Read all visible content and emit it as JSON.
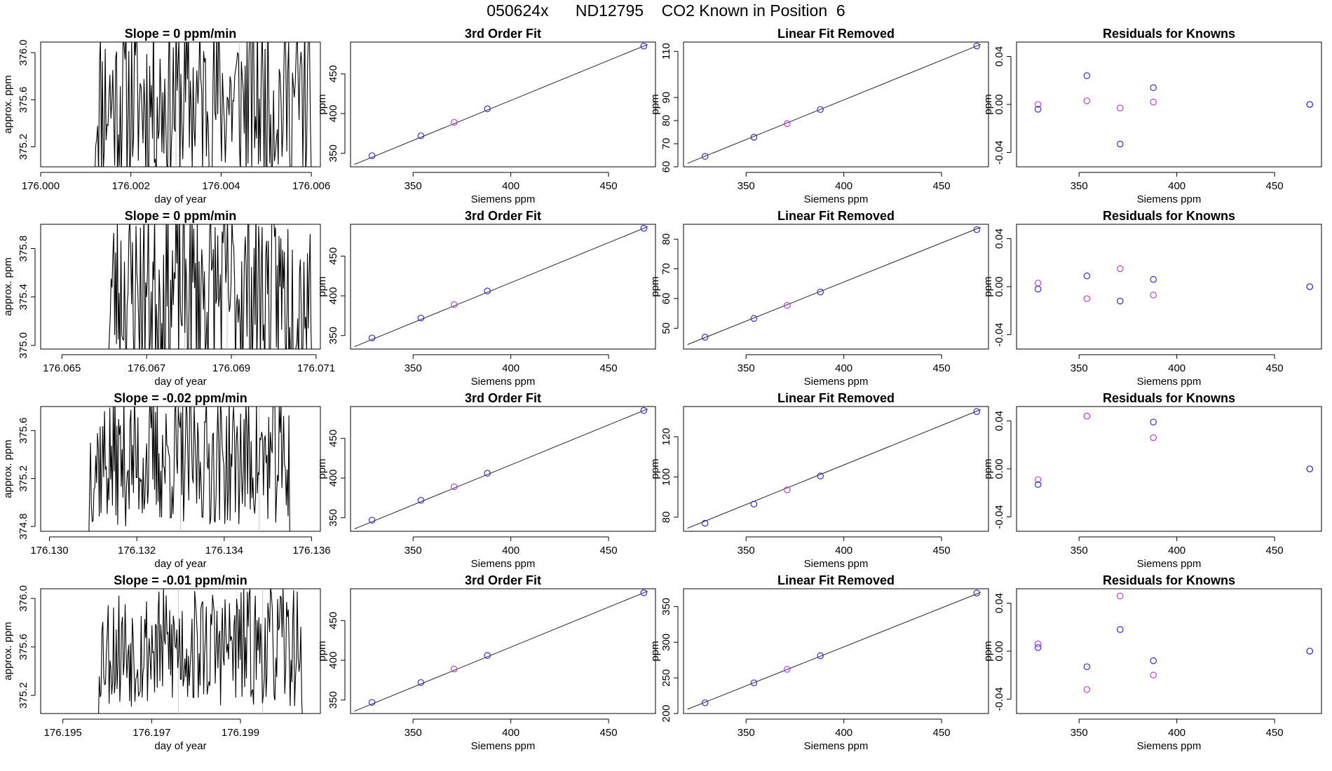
{
  "title": "050624x      ND12795    CO2 Known in Position  6",
  "colors": {
    "trace": "#000000",
    "frame": "#000000",
    "fit_line": "#222222",
    "point_blue": "#3030d8",
    "point_magenta": "#c040e0",
    "vline": "#c8c8c8"
  },
  "chart_data": [
    {
      "type": "line",
      "row": 1,
      "col": 1,
      "title": "Slope =  0  ppm/min",
      "xlabel": "day of year",
      "ylabel": "approx. ppm",
      "xlim": [
        176.0,
        176.0062
      ],
      "ylim": [
        375.03,
        376.09
      ],
      "xticks": [
        176.0,
        176.002,
        176.004,
        176.006
      ],
      "xtick_labels": [
        "176.000",
        "176.002",
        "176.004",
        "176.006"
      ],
      "yticks": [
        375.2,
        375.6,
        376.0
      ],
      "ytick_labels": [
        "375.2",
        "375.6",
        "376.0"
      ],
      "vlines": [
        176.003,
        176.0044,
        176.005
      ],
      "trace_x_range": [
        176.0012,
        176.006
      ],
      "trace_seed": 11,
      "trace_n": 230,
      "trace_center": 375.6,
      "trace_amp": 0.75
    },
    {
      "type": "scatter",
      "row": 1,
      "col": 2,
      "title": "3rd Order Fit",
      "xlabel": "Siemens ppm",
      "ylabel": "ppm",
      "xlim": [
        318,
        474
      ],
      "ylim": [
        333,
        490
      ],
      "xticks": [
        350,
        400,
        450
      ],
      "xtick_labels": [
        "350",
        "400",
        "450"
      ],
      "yticks": [
        350,
        400,
        450
      ],
      "ytick_labels": [
        "350",
        "400",
        "450"
      ],
      "fit_line": [
        [
          320,
          336
        ],
        [
          470,
          487
        ]
      ],
      "points_blue": [
        [
          329,
          347
        ],
        [
          354,
          372
        ],
        [
          388,
          406
        ],
        [
          468,
          485
        ]
      ],
      "points_magenta": [
        [
          371,
          389
        ]
      ]
    },
    {
      "type": "scatter",
      "row": 1,
      "col": 3,
      "title": "Linear Fit Removed",
      "xlabel": "Siemens ppm",
      "ylabel": "ppm",
      "xlim": [
        318,
        474
      ],
      "ylim": [
        60,
        114
      ],
      "xticks": [
        350,
        400,
        450
      ],
      "xtick_labels": [
        "350",
        "400",
        "450"
      ],
      "yticks": [
        60,
        70,
        80,
        90,
        110
      ],
      "ytick_labels": [
        "60",
        "70",
        "80",
        "90",
        "110"
      ],
      "fit_line": [
        [
          320,
          61.5
        ],
        [
          470,
          113
        ]
      ],
      "points_blue": [
        [
          329,
          64.5
        ],
        [
          354,
          72.8
        ],
        [
          388,
          84.8
        ],
        [
          468,
          112.3
        ]
      ],
      "points_magenta": [
        [
          371,
          78.7
        ]
      ]
    },
    {
      "type": "scatter",
      "row": 1,
      "col": 4,
      "title": "Residuals for Knowns",
      "xlabel": "Siemens ppm",
      "ylabel": "ppm",
      "xlim": [
        318,
        474
      ],
      "ylim": [
        -0.052,
        0.052
      ],
      "xticks": [
        350,
        400,
        450
      ],
      "xtick_labels": [
        "350",
        "400",
        "450"
      ],
      "yticks": [
        -0.04,
        0.0,
        0.04
      ],
      "ytick_labels": [
        "-0.04",
        "0.00",
        "0.04"
      ],
      "points_blue": [
        [
          329,
          -0.004
        ],
        [
          354,
          0.024
        ],
        [
          371,
          -0.033
        ],
        [
          388,
          0.014
        ],
        [
          468,
          0.0
        ]
      ],
      "points_magenta": [
        [
          329,
          0.0
        ],
        [
          354,
          0.003
        ],
        [
          371,
          -0.003
        ],
        [
          388,
          0.002
        ],
        [
          468,
          0.0
        ]
      ]
    },
    {
      "type": "line",
      "row": 2,
      "col": 1,
      "title": "Slope =  0  ppm/min",
      "xlabel": "day of year",
      "ylabel": "approx. ppm",
      "xlim": [
        176.0645,
        176.0711
      ],
      "ylim": [
        374.97,
        376.0
      ],
      "xticks": [
        176.065,
        176.067,
        176.069,
        176.071
      ],
      "xtick_labels": [
        "176.065",
        "176.067",
        "176.069",
        "176.071"
      ],
      "yticks": [
        375.0,
        375.4,
        375.8
      ],
      "ytick_labels": [
        "375.0",
        "375.4",
        "375.8"
      ],
      "vlines": [
        176.0679,
        176.0689
      ],
      "trace_x_range": [
        176.0661,
        176.0709
      ],
      "trace_seed": 23,
      "trace_n": 230,
      "trace_center": 375.45,
      "trace_amp": 0.75
    },
    {
      "type": "scatter",
      "row": 2,
      "col": 2,
      "title": "3rd Order Fit",
      "xlabel": "Siemens ppm",
      "ylabel": "ppm",
      "xlim": [
        318,
        474
      ],
      "ylim": [
        333,
        490
      ],
      "xticks": [
        350,
        400,
        450
      ],
      "xtick_labels": [
        "350",
        "400",
        "450"
      ],
      "yticks": [
        350,
        400,
        450
      ],
      "ytick_labels": [
        "350",
        "400",
        "450"
      ],
      "fit_line": [
        [
          320,
          336
        ],
        [
          470,
          487
        ]
      ],
      "points_blue": [
        [
          329,
          347
        ],
        [
          354,
          372
        ],
        [
          388,
          406
        ],
        [
          468,
          485
        ]
      ],
      "points_magenta": [
        [
          371,
          389
        ]
      ]
    },
    {
      "type": "scatter",
      "row": 2,
      "col": 3,
      "title": "Linear Fit Removed",
      "xlabel": "Siemens ppm",
      "ylabel": "ppm",
      "xlim": [
        318,
        474
      ],
      "ylim": [
        43,
        85
      ],
      "xticks": [
        350,
        400,
        450
      ],
      "xtick_labels": [
        "350",
        "400",
        "450"
      ],
      "yticks": [
        50,
        60,
        70,
        80
      ],
      "ytick_labels": [
        "50",
        "60",
        "70",
        "80"
      ],
      "fit_line": [
        [
          320,
          44.5
        ],
        [
          470,
          84
        ]
      ],
      "points_blue": [
        [
          329,
          47
        ],
        [
          354,
          53.3
        ],
        [
          388,
          62.2
        ],
        [
          468,
          83.2
        ]
      ],
      "points_magenta": [
        [
          371,
          57.7
        ]
      ]
    },
    {
      "type": "scatter",
      "row": 2,
      "col": 4,
      "title": "Residuals for Knowns",
      "xlabel": "Siemens ppm",
      "ylabel": "ppm",
      "xlim": [
        318,
        474
      ],
      "ylim": [
        -0.052,
        0.052
      ],
      "xticks": [
        350,
        400,
        450
      ],
      "xtick_labels": [
        "350",
        "400",
        "450"
      ],
      "yticks": [
        -0.04,
        0.0,
        0.04
      ],
      "ytick_labels": [
        "-0.04",
        "0.00",
        "0.04"
      ],
      "points_blue": [
        [
          329,
          -0.002
        ],
        [
          354,
          0.009
        ],
        [
          371,
          -0.012
        ],
        [
          388,
          0.006
        ],
        [
          468,
          0.0
        ]
      ],
      "points_magenta": [
        [
          329,
          0.003
        ],
        [
          354,
          -0.01
        ],
        [
          371,
          0.015
        ],
        [
          388,
          -0.007
        ],
        [
          468,
          0.0
        ]
      ]
    },
    {
      "type": "line",
      "row": 3,
      "col": 1,
      "title": "Slope =  -0.02  ppm/min",
      "xlabel": "day of year",
      "ylabel": "approx. ppm",
      "xlim": [
        176.1298,
        176.1362
      ],
      "ylim": [
        374.76,
        375.8
      ],
      "xticks": [
        176.13,
        176.132,
        176.134,
        176.136
      ],
      "xtick_labels": [
        "176.130",
        "176.132",
        "176.134",
        "176.136"
      ],
      "yticks": [
        374.8,
        375.2,
        375.6
      ],
      "ytick_labels": [
        "374.8",
        "375.2",
        "375.6"
      ],
      "vlines": [
        176.133,
        176.1348
      ],
      "trace_x_range": [
        176.1309,
        176.1355
      ],
      "trace_seed": 37,
      "trace_n": 230,
      "trace_center": 375.35,
      "trace_amp": 0.55
    },
    {
      "type": "scatter",
      "row": 3,
      "col": 2,
      "title": "3rd Order Fit",
      "xlabel": "Siemens ppm",
      "ylabel": "ppm",
      "xlim": [
        318,
        474
      ],
      "ylim": [
        333,
        490
      ],
      "xticks": [
        350,
        400,
        450
      ],
      "xtick_labels": [
        "350",
        "400",
        "450"
      ],
      "yticks": [
        350,
        400,
        450
      ],
      "ytick_labels": [
        "350",
        "400",
        "450"
      ],
      "fit_line": [
        [
          320,
          336
        ],
        [
          470,
          487
        ]
      ],
      "points_blue": [
        [
          329,
          347
        ],
        [
          354,
          372
        ],
        [
          388,
          406
        ],
        [
          468,
          485
        ]
      ],
      "points_magenta": [
        [
          371,
          389
        ]
      ]
    },
    {
      "type": "scatter",
      "row": 3,
      "col": 3,
      "title": "Linear Fit Removed",
      "xlabel": "Siemens ppm",
      "ylabel": "ppm",
      "xlim": [
        318,
        474
      ],
      "ylim": [
        73,
        135
      ],
      "xticks": [
        350,
        400,
        450
      ],
      "xtick_labels": [
        "350",
        "400",
        "450"
      ],
      "yticks": [
        80,
        100,
        120
      ],
      "ytick_labels": [
        "80",
        "100",
        "120"
      ],
      "fit_line": [
        [
          320,
          74.5
        ],
        [
          470,
          133.5
        ]
      ],
      "points_blue": [
        [
          329,
          77
        ],
        [
          354,
          86.5
        ],
        [
          388,
          100.5
        ],
        [
          468,
          132.5
        ]
      ],
      "points_magenta": [
        [
          371,
          93.6
        ]
      ]
    },
    {
      "type": "scatter",
      "row": 3,
      "col": 4,
      "title": "Residuals for Knowns",
      "xlabel": "Siemens ppm",
      "ylabel": "ppm",
      "xlim": [
        318,
        474
      ],
      "ylim": [
        -0.052,
        0.052
      ],
      "xticks": [
        350,
        400,
        450
      ],
      "xtick_labels": [
        "350",
        "400",
        "450"
      ],
      "yticks": [
        -0.04,
        0.0,
        0.04
      ],
      "ytick_labels": [
        "-0.04",
        "0.00",
        "0.04"
      ],
      "points_blue": [
        [
          329,
          -0.013
        ],
        [
          388,
          0.039
        ],
        [
          468,
          0.0
        ]
      ],
      "points_magenta": [
        [
          329,
          -0.009
        ],
        [
          354,
          0.044
        ],
        [
          388,
          0.026
        ],
        [
          468,
          0.0
        ]
      ]
    },
    {
      "type": "line",
      "row": 4,
      "col": 1,
      "title": "Slope =  -0.01  ppm/min",
      "xlabel": "day of year",
      "ylabel": "approx. ppm",
      "xlim": [
        176.1945,
        176.2008
      ],
      "ylim": [
        375.05,
        376.08
      ],
      "xticks": [
        176.195,
        176.197,
        176.199
      ],
      "xtick_labels": [
        "176.195",
        "176.197",
        "176.199"
      ],
      "yticks": [
        375.2,
        375.6,
        376.0
      ],
      "ytick_labels": [
        "375.2",
        "375.6",
        "376.0"
      ],
      "vlines": [
        176.1976,
        176.1995
      ],
      "trace_x_range": [
        176.1958,
        176.2004
      ],
      "trace_seed": 53,
      "trace_n": 230,
      "trace_center": 375.6,
      "trace_amp": 0.5
    },
    {
      "type": "scatter",
      "row": 4,
      "col": 2,
      "title": "3rd Order Fit",
      "xlabel": "Siemens ppm",
      "ylabel": "ppm",
      "xlim": [
        318,
        474
      ],
      "ylim": [
        333,
        490
      ],
      "xticks": [
        350,
        400,
        450
      ],
      "xtick_labels": [
        "350",
        "400",
        "450"
      ],
      "yticks": [
        350,
        400,
        450
      ],
      "ytick_labels": [
        "350",
        "400",
        "450"
      ],
      "fit_line": [
        [
          320,
          336
        ],
        [
          470,
          487
        ]
      ],
      "points_blue": [
        [
          329,
          347
        ],
        [
          354,
          372
        ],
        [
          388,
          406
        ],
        [
          468,
          485
        ]
      ],
      "points_magenta": [
        [
          371,
          389
        ]
      ]
    },
    {
      "type": "scatter",
      "row": 4,
      "col": 3,
      "title": "Linear Fit Removed",
      "xlabel": "Siemens ppm",
      "ylabel": "ppm",
      "xlim": [
        318,
        474
      ],
      "ylim": [
        200,
        375
      ],
      "xticks": [
        350,
        400,
        450
      ],
      "xtick_labels": [
        "350",
        "400",
        "450"
      ],
      "yticks": [
        200,
        250,
        300,
        350
      ],
      "ytick_labels": [
        "200",
        "250",
        "300",
        "350"
      ],
      "fit_line": [
        [
          320,
          206
        ],
        [
          470,
          370
        ]
      ],
      "points_blue": [
        [
          329,
          215
        ],
        [
          354,
          243
        ],
        [
          388,
          281
        ],
        [
          468,
          369
        ]
      ],
      "points_magenta": [
        [
          371,
          262
        ]
      ]
    },
    {
      "type": "scatter",
      "row": 4,
      "col": 4,
      "title": "Residuals for Knowns",
      "xlabel": "Siemens ppm",
      "ylabel": "ppm",
      "xlim": [
        318,
        474
      ],
      "ylim": [
        -0.052,
        0.052
      ],
      "xticks": [
        350,
        400,
        450
      ],
      "xtick_labels": [
        "350",
        "400",
        "450"
      ],
      "yticks": [
        -0.04,
        0.0,
        0.04
      ],
      "ytick_labels": [
        "-0.04",
        "0.00",
        "0.04"
      ],
      "points_blue": [
        [
          329,
          0.003
        ],
        [
          354,
          -0.013
        ],
        [
          371,
          0.018
        ],
        [
          388,
          -0.008
        ],
        [
          468,
          0.0
        ]
      ],
      "points_magenta": [
        [
          329,
          0.006
        ],
        [
          354,
          -0.032
        ],
        [
          371,
          0.046
        ],
        [
          388,
          -0.02
        ],
        [
          468,
          0.0
        ]
      ]
    }
  ]
}
